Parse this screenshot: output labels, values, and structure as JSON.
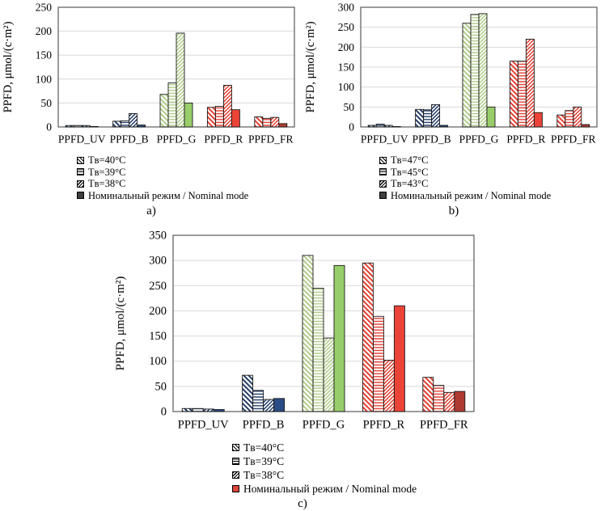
{
  "figure_title": "PPFD bar charts",
  "captions": {
    "a": "a)",
    "b": "b)",
    "c": "c)"
  },
  "colors": {
    "grid": "#d9d9d9",
    "plot_border": "#595959",
    "bar_outline": "#1a1a1a",
    "navy_hatch": "#1f3864",
    "navy_solid": "#2a4c85",
    "green_hatch": "#afcb88",
    "green_solid": "#98ce6a",
    "red_hatch": "#e23b2e",
    "red_solid": "#ec4338",
    "darkred_solid": "#ae3b33",
    "legend_dark": "#3f3f3f",
    "legend_red": "#d8453a"
  },
  "chart_data": [
    {
      "id": "a",
      "type": "bar",
      "caption": "a)",
      "ylabel": "PPFD, μmol/(с·m²)",
      "ylim": [
        0,
        250
      ],
      "ytick_step": 50,
      "grid": true,
      "legend_position": "bottom-left",
      "categories": [
        "PPFD_UV",
        "PPFD_B",
        "PPFD_G",
        "PPFD_R",
        "PPFD_FR"
      ],
      "bar_colors": [
        {
          "hatch": "#1f3864",
          "solid": "#2a4c85"
        },
        {
          "hatch": "#1f3864",
          "solid": "#2a4c85"
        },
        {
          "hatch": "#afcb88",
          "solid": "#98ce6a"
        },
        {
          "hatch": "#e23b2e",
          "solid": "#ec4338"
        },
        {
          "hatch": "#e23b2e",
          "solid": "#ae3b33"
        }
      ],
      "series": [
        {
          "name": "Tв=40°C",
          "pattern": "diag-down",
          "values": [
            3,
            12,
            68,
            41,
            21
          ]
        },
        {
          "name": "Tв=39°C",
          "pattern": "horizontal",
          "values": [
            3,
            13,
            92,
            43,
            18
          ]
        },
        {
          "name": "Tв=38°C",
          "pattern": "diag-up",
          "values": [
            3,
            28,
            196,
            87,
            20
          ]
        },
        {
          "name": "Номинальный режим / Nominal mode",
          "pattern": "solid",
          "values": [
            1,
            4,
            50,
            36,
            7
          ]
        }
      ],
      "legend_markers": [
        {
          "pattern": "diag-down",
          "color": "#000000"
        },
        {
          "pattern": "horizontal",
          "color": "#000000"
        },
        {
          "pattern": "diag-up",
          "color": "#000000"
        },
        {
          "pattern": "solid",
          "color": "#3f3f3f"
        }
      ]
    },
    {
      "id": "b",
      "type": "bar",
      "caption": "b)",
      "ylabel": "PPFD, μmol/(с·m²)",
      "ylim": [
        0,
        300
      ],
      "ytick_step": 50,
      "grid": true,
      "legend_position": "bottom-left",
      "categories": [
        "PPFD_UV",
        "PPFD_B",
        "PPFD_G",
        "PPFD_R",
        "PPFD_FR"
      ],
      "bar_colors": [
        {
          "hatch": "#1f3864",
          "solid": "#2a4c85"
        },
        {
          "hatch": "#1f3864",
          "solid": "#2a4c85"
        },
        {
          "hatch": "#afcb88",
          "solid": "#98ce6a"
        },
        {
          "hatch": "#e23b2e",
          "solid": "#ec4338"
        },
        {
          "hatch": "#e23b2e",
          "solid": "#ae3b33"
        }
      ],
      "series": [
        {
          "name": "Tв=47°C",
          "pattern": "diag-down",
          "values": [
            4,
            44,
            260,
            165,
            30
          ]
        },
        {
          "name": "Tв=45°C",
          "pattern": "horizontal",
          "values": [
            7,
            43,
            282,
            165,
            41
          ]
        },
        {
          "name": "Tв=43°C",
          "pattern": "diag-up",
          "values": [
            4,
            56,
            284,
            220,
            50
          ]
        },
        {
          "name": "Номинальный режим / Nominal mode",
          "pattern": "solid",
          "values": [
            1,
            4,
            50,
            36,
            6
          ]
        }
      ],
      "legend_markers": [
        {
          "pattern": "diag-down",
          "color": "#000000"
        },
        {
          "pattern": "horizontal",
          "color": "#000000"
        },
        {
          "pattern": "diag-up",
          "color": "#000000"
        },
        {
          "pattern": "solid",
          "color": "#3f3f3f"
        }
      ]
    },
    {
      "id": "c",
      "type": "bar",
      "caption": "c)",
      "ylabel": "PPFD, μmol/(с·m²)",
      "ylim": [
        0,
        350
      ],
      "ytick_step": 50,
      "grid": true,
      "legend_position": "bottom-left",
      "categories": [
        "PPFD_UV",
        "PPFD_B",
        "PPFD_G",
        "PPFD_R",
        "PPFD_FR"
      ],
      "bar_colors": [
        {
          "hatch": "#1f3864",
          "solid": "#2a4c85"
        },
        {
          "hatch": "#1f3864",
          "solid": "#2a4c85"
        },
        {
          "hatch": "#afcb88",
          "solid": "#98ce6a"
        },
        {
          "hatch": "#e23b2e",
          "solid": "#ec4338"
        },
        {
          "hatch": "#e23b2e",
          "solid": "#ae3b33"
        }
      ],
      "series": [
        {
          "name": "Tв=40°C",
          "pattern": "diag-down",
          "values": [
            6,
            72,
            310,
            295,
            68
          ]
        },
        {
          "name": "Tв=39°C",
          "pattern": "horizontal",
          "values": [
            6,
            42,
            245,
            189,
            52
          ]
        },
        {
          "name": "Tв=38°C",
          "pattern": "diag-up",
          "values": [
            5,
            24,
            146,
            102,
            38
          ]
        },
        {
          "name": "Номинальный режим / Nominal mode",
          "pattern": "solid",
          "values": [
            4,
            26,
            290,
            210,
            40
          ]
        }
      ],
      "legend_markers": [
        {
          "pattern": "diag-down",
          "color": "#000000"
        },
        {
          "pattern": "horizontal",
          "color": "#000000"
        },
        {
          "pattern": "diag-up",
          "color": "#000000"
        },
        {
          "pattern": "solid",
          "color": "#d8453a"
        }
      ]
    }
  ]
}
